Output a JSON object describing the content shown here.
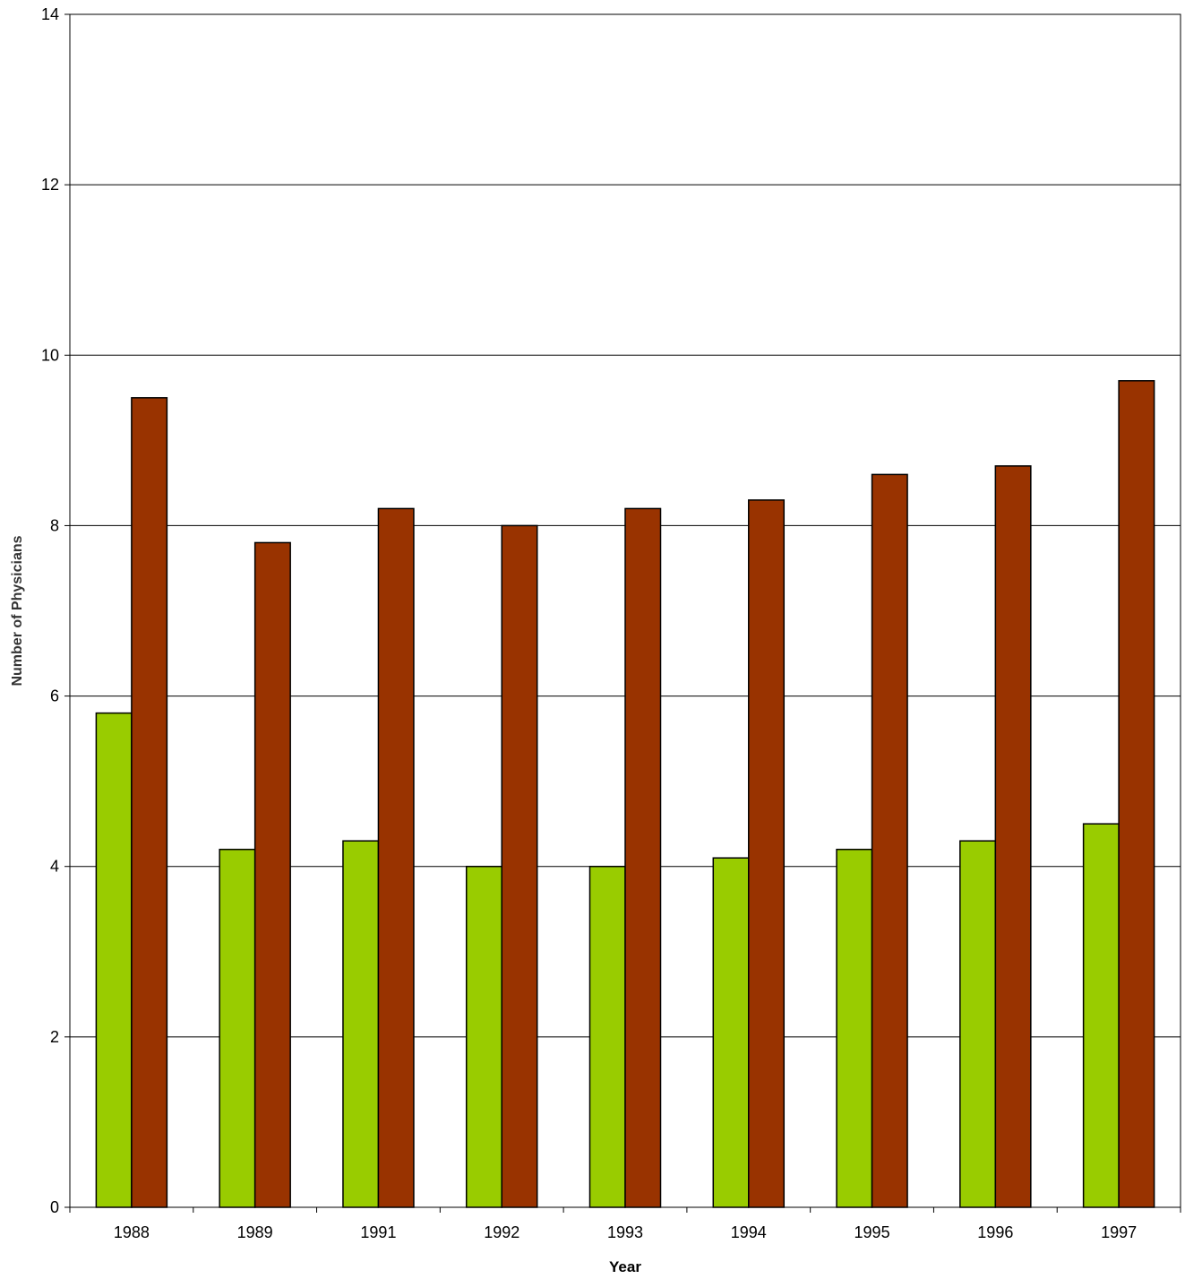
{
  "chart_data": {
    "type": "bar",
    "title": "",
    "xlabel": "Year",
    "ylabel": "Number of Physicians",
    "categories": [
      "1988",
      "1989",
      "1991",
      "1992",
      "1993",
      "1994",
      "1995",
      "1996",
      "1997"
    ],
    "series": [
      {
        "values": [
          5.8,
          4.2,
          4.3,
          4.0,
          4.0,
          4.1,
          4.2,
          4.3,
          4.5
        ],
        "color": "#99cc00"
      },
      {
        "values": [
          9.5,
          7.8,
          8.2,
          8.0,
          8.2,
          8.3,
          8.6,
          8.7,
          9.7
        ],
        "color": "#993300"
      }
    ],
    "ylim": [
      0,
      14
    ],
    "yticks": [
      "0",
      "2",
      "4",
      "6",
      "8",
      "10",
      "12",
      "14"
    ],
    "grid": true,
    "legend": "none"
  }
}
